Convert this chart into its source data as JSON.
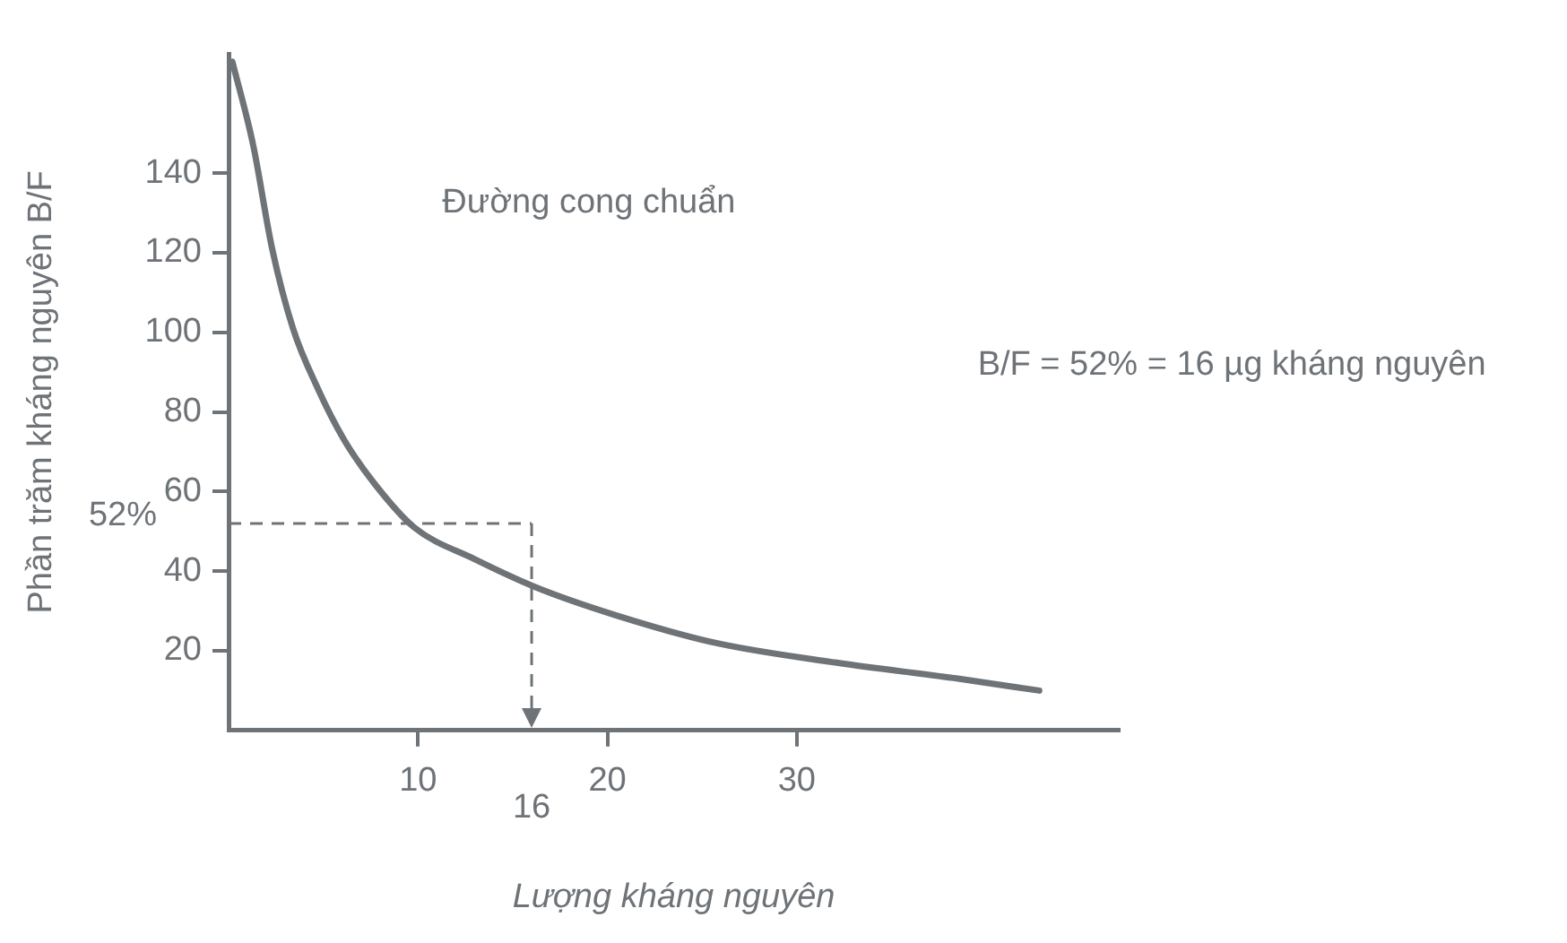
{
  "chart_data": {
    "type": "line",
    "xlabel": "Lượng kháng nguyên",
    "ylabel": "Phần trăm kháng nguyên B/F",
    "x": [
      0.2,
      1.3,
      2.3,
      3.4,
      4.7,
      6.1,
      7.7,
      9.8,
      13,
      16.2,
      20.4,
      25.7,
      32.1,
      38.5,
      42.8
    ],
    "series": [
      {
        "color": "#6e7378",
        "values": [
          168,
          147,
          121,
          101,
          86,
          73,
          62,
          51,
          43,
          36,
          29,
          22,
          17,
          13,
          10
        ]
      }
    ],
    "xlim": [
      0,
      47
    ],
    "xticks": [
      10,
      20,
      30
    ],
    "ylim": [
      0,
      170
    ],
    "yticks": [
      20,
      40,
      60,
      80,
      100,
      120,
      140
    ],
    "ref_lines": [
      {
        "axis": "y",
        "value": 52,
        "label": "52%",
        "line_style": "dashed"
      },
      {
        "axis": "x",
        "value": 16,
        "label": "16",
        "line_style": "dashed"
      }
    ],
    "annotations": [
      "Đường cong chuẩn",
      "B/F = 52% = 16 µg kháng nguyên"
    ],
    "grid": false,
    "legend": false,
    "marker": "none",
    "line_style": "solid"
  }
}
